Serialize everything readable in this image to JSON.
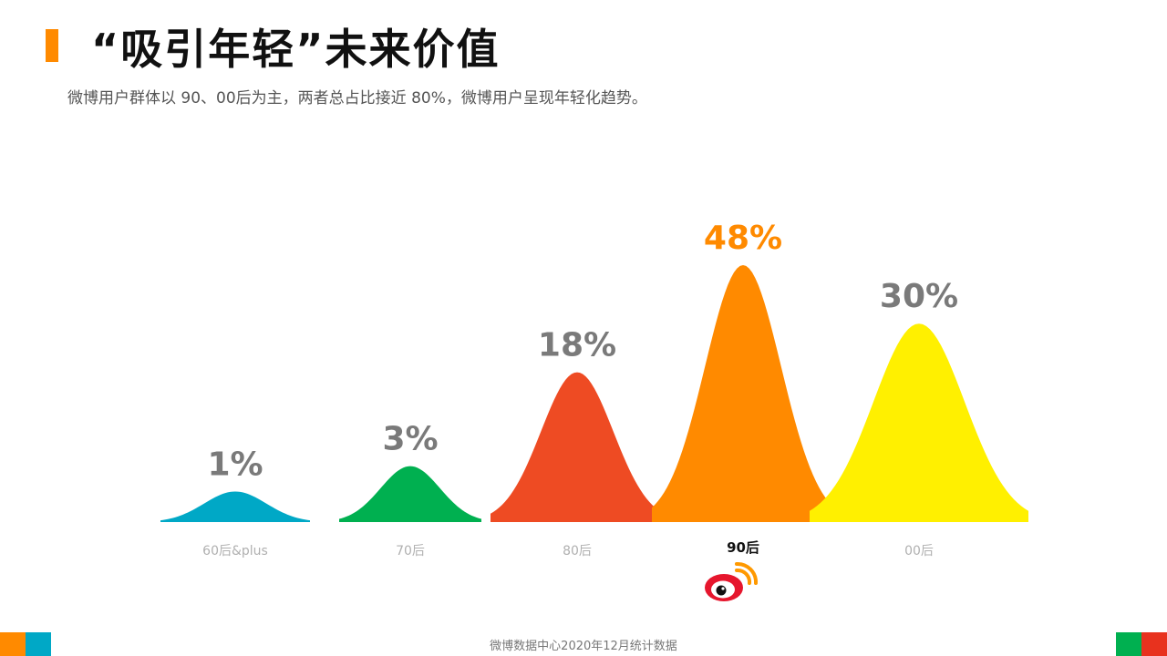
{
  "title": "“吸引年轻”未来价值",
  "subtitle": "微博用户群体以 90、00后为主，两者总占比接近 80%，微博用户呈现年轻化趋势。",
  "source": "微博数据中心2020年12月统计数据",
  "colors": {
    "accent": "#ff8a00",
    "label_gray": "#7a7a7a",
    "corner_left": [
      "#ff8a00",
      "#00a8c6"
    ],
    "corner_right": [
      "#00b050",
      "#e8321e"
    ]
  },
  "chart_data": {
    "type": "area",
    "title": "",
    "xlabel": "",
    "ylabel": "",
    "categories": [
      "60后&plus",
      "70后",
      "80后",
      "90后",
      "00后"
    ],
    "values": [
      1,
      3,
      18,
      48,
      30
    ],
    "value_labels": [
      "1%",
      "3%",
      "18%",
      "48%",
      "30%"
    ],
    "highlight_index": 3,
    "colors": [
      "#00a8c6",
      "#00b050",
      "#ee4b23",
      "#ff8a00",
      "#fff000"
    ],
    "label_colors": [
      "#7a7a7a",
      "#7a7a7a",
      "#7a7a7a",
      "#ff8a00",
      "#7a7a7a"
    ],
    "legend": "none",
    "grid": false
  },
  "icons": {
    "highlight_logo": "weibo-logo-icon"
  }
}
